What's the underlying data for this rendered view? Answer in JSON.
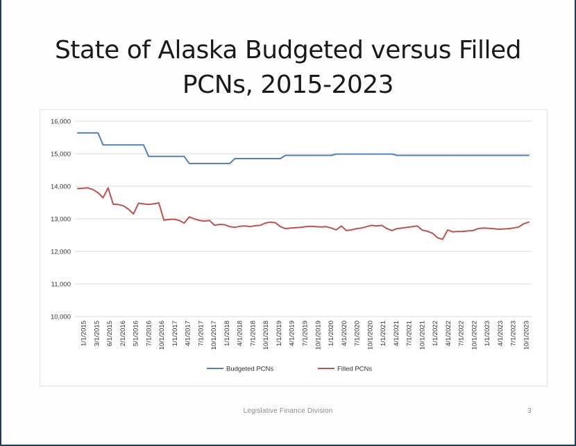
{
  "slide": {
    "title_line1": "State of Alaska Budgeted versus Filled",
    "title_line2": "PCNs, 2015-2023",
    "footer": "Legislative Finance Division",
    "page_number": "3"
  },
  "chart_data": {
    "type": "line",
    "title": "",
    "xlabel": "",
    "ylabel": "",
    "ylim": [
      10000,
      16000
    ],
    "y_ticks": [
      10000,
      11000,
      12000,
      13000,
      14000,
      15000,
      16000
    ],
    "y_tick_labels": [
      "10,000",
      "11,000",
      "12,000",
      "13,000",
      "14,000",
      "15,000",
      "16,000"
    ],
    "x_tick_labels": [
      "1/1/2015",
      "3/1/2015",
      "6/1/2015",
      "2/1/2016",
      "5/1/2016",
      "7/1/2016",
      "10/1/2016",
      "1/1/2017",
      "4/1/2017",
      "7/1/2017",
      "10/1/2017",
      "1/1/2018",
      "4/1/2018",
      "7/1/2018",
      "10/1/2018",
      "1/1/2019",
      "4/1/2019",
      "7/1/2019",
      "10/1/2019",
      "1/1/2020",
      "4/1/2020",
      "7/1/2020",
      "10/1/2020",
      "1/1/2021",
      "4/1/2021",
      "7/1/2021",
      "10/1/2021",
      "1/1/2022",
      "4/1/2022",
      "7/1/2022",
      "10/1/2022",
      "1/1/2023",
      "4/1/2023",
      "7/1/2023",
      "10/1/2023"
    ],
    "grid": true,
    "legend_position": "bottom",
    "series": [
      {
        "name": "Budgeted PCNs",
        "color": "#4f81bd",
        "values": [
          15640,
          15640,
          15640,
          15640,
          15640,
          15270,
          15270,
          15270,
          15270,
          15270,
          15270,
          15270,
          15270,
          15270,
          14920,
          14920,
          14920,
          14920,
          14920,
          14920,
          14920,
          14920,
          14700,
          14700,
          14700,
          14700,
          14700,
          14700,
          14700,
          14700,
          14700,
          14850,
          14850,
          14850,
          14850,
          14850,
          14850,
          14850,
          14850,
          14850,
          14850,
          14950,
          14950,
          14950,
          14950,
          14950,
          14950,
          14950,
          14950,
          14950,
          14950,
          14990,
          14990,
          14990,
          14990,
          14990,
          14990,
          14990,
          14990,
          14990,
          14990,
          14990,
          14990,
          14950,
          14950,
          14950,
          14950,
          14950,
          14950,
          14950,
          14950,
          14950,
          14950,
          14950,
          14950,
          14950,
          14950,
          14950,
          14950,
          14950,
          14950,
          14950,
          14950,
          14950,
          14950,
          14950,
          14950,
          14950,
          14950,
          14950
        ]
      },
      {
        "name": "Filled PCNs",
        "color": "#c0504d",
        "values": [
          13930,
          13940,
          13950,
          13900,
          13800,
          13650,
          13950,
          13450,
          13440,
          13400,
          13300,
          13150,
          13480,
          13460,
          13440,
          13460,
          13490,
          12960,
          12980,
          12990,
          12950,
          12870,
          13060,
          13000,
          12950,
          12930,
          12950,
          12800,
          12830,
          12820,
          12760,
          12740,
          12770,
          12780,
          12760,
          12790,
          12800,
          12870,
          12900,
          12880,
          12760,
          12700,
          12720,
          12730,
          12740,
          12760,
          12770,
          12760,
          12750,
          12760,
          12720,
          12660,
          12780,
          12640,
          12660,
          12700,
          12720,
          12760,
          12800,
          12780,
          12800,
          12700,
          12640,
          12700,
          12720,
          12740,
          12760,
          12780,
          12650,
          12620,
          12560,
          12420,
          12370,
          12660,
          12600,
          12610,
          12610,
          12630,
          12640,
          12700,
          12720,
          12710,
          12700,
          12680,
          12690,
          12700,
          12720,
          12750,
          12850,
          12900
        ]
      }
    ]
  }
}
